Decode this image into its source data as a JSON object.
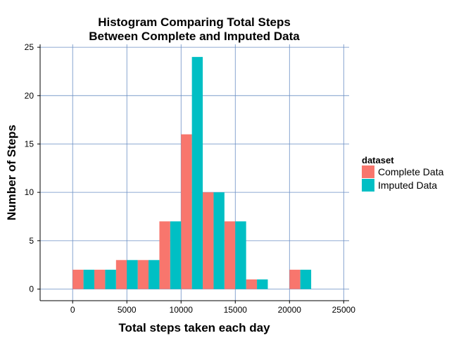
{
  "chart_data": {
    "type": "bar",
    "title_lines": [
      "Histogram Comparing Total Steps",
      "Between Complete and Imputed Data"
    ],
    "xlabel": "Total steps taken each day",
    "ylabel": "Number of Steps",
    "xlim": [
      -3000,
      25500
    ],
    "ylim": [
      -1.2,
      25.3
    ],
    "xticks": [
      0,
      5000,
      10000,
      15000,
      20000,
      25000
    ],
    "yticks": [
      0,
      5,
      10,
      15,
      20,
      25
    ],
    "grid": true,
    "legend": {
      "title": "dataset",
      "position": "right"
    },
    "bin_centers": [
      1000,
      3000,
      5000,
      7000,
      9000,
      11000,
      13000,
      15000,
      17000,
      19000,
      21000
    ],
    "bin_width": 2000,
    "series": [
      {
        "name": "Complete Data",
        "color": "#F8766D",
        "values": [
          2,
          2,
          3,
          3,
          7,
          16,
          10,
          7,
          1,
          0,
          2
        ]
      },
      {
        "name": "Imputed Data",
        "color": "#00BFC4",
        "values": [
          2,
          2,
          3,
          3,
          7,
          24,
          10,
          7,
          1,
          0,
          2
        ]
      }
    ]
  }
}
